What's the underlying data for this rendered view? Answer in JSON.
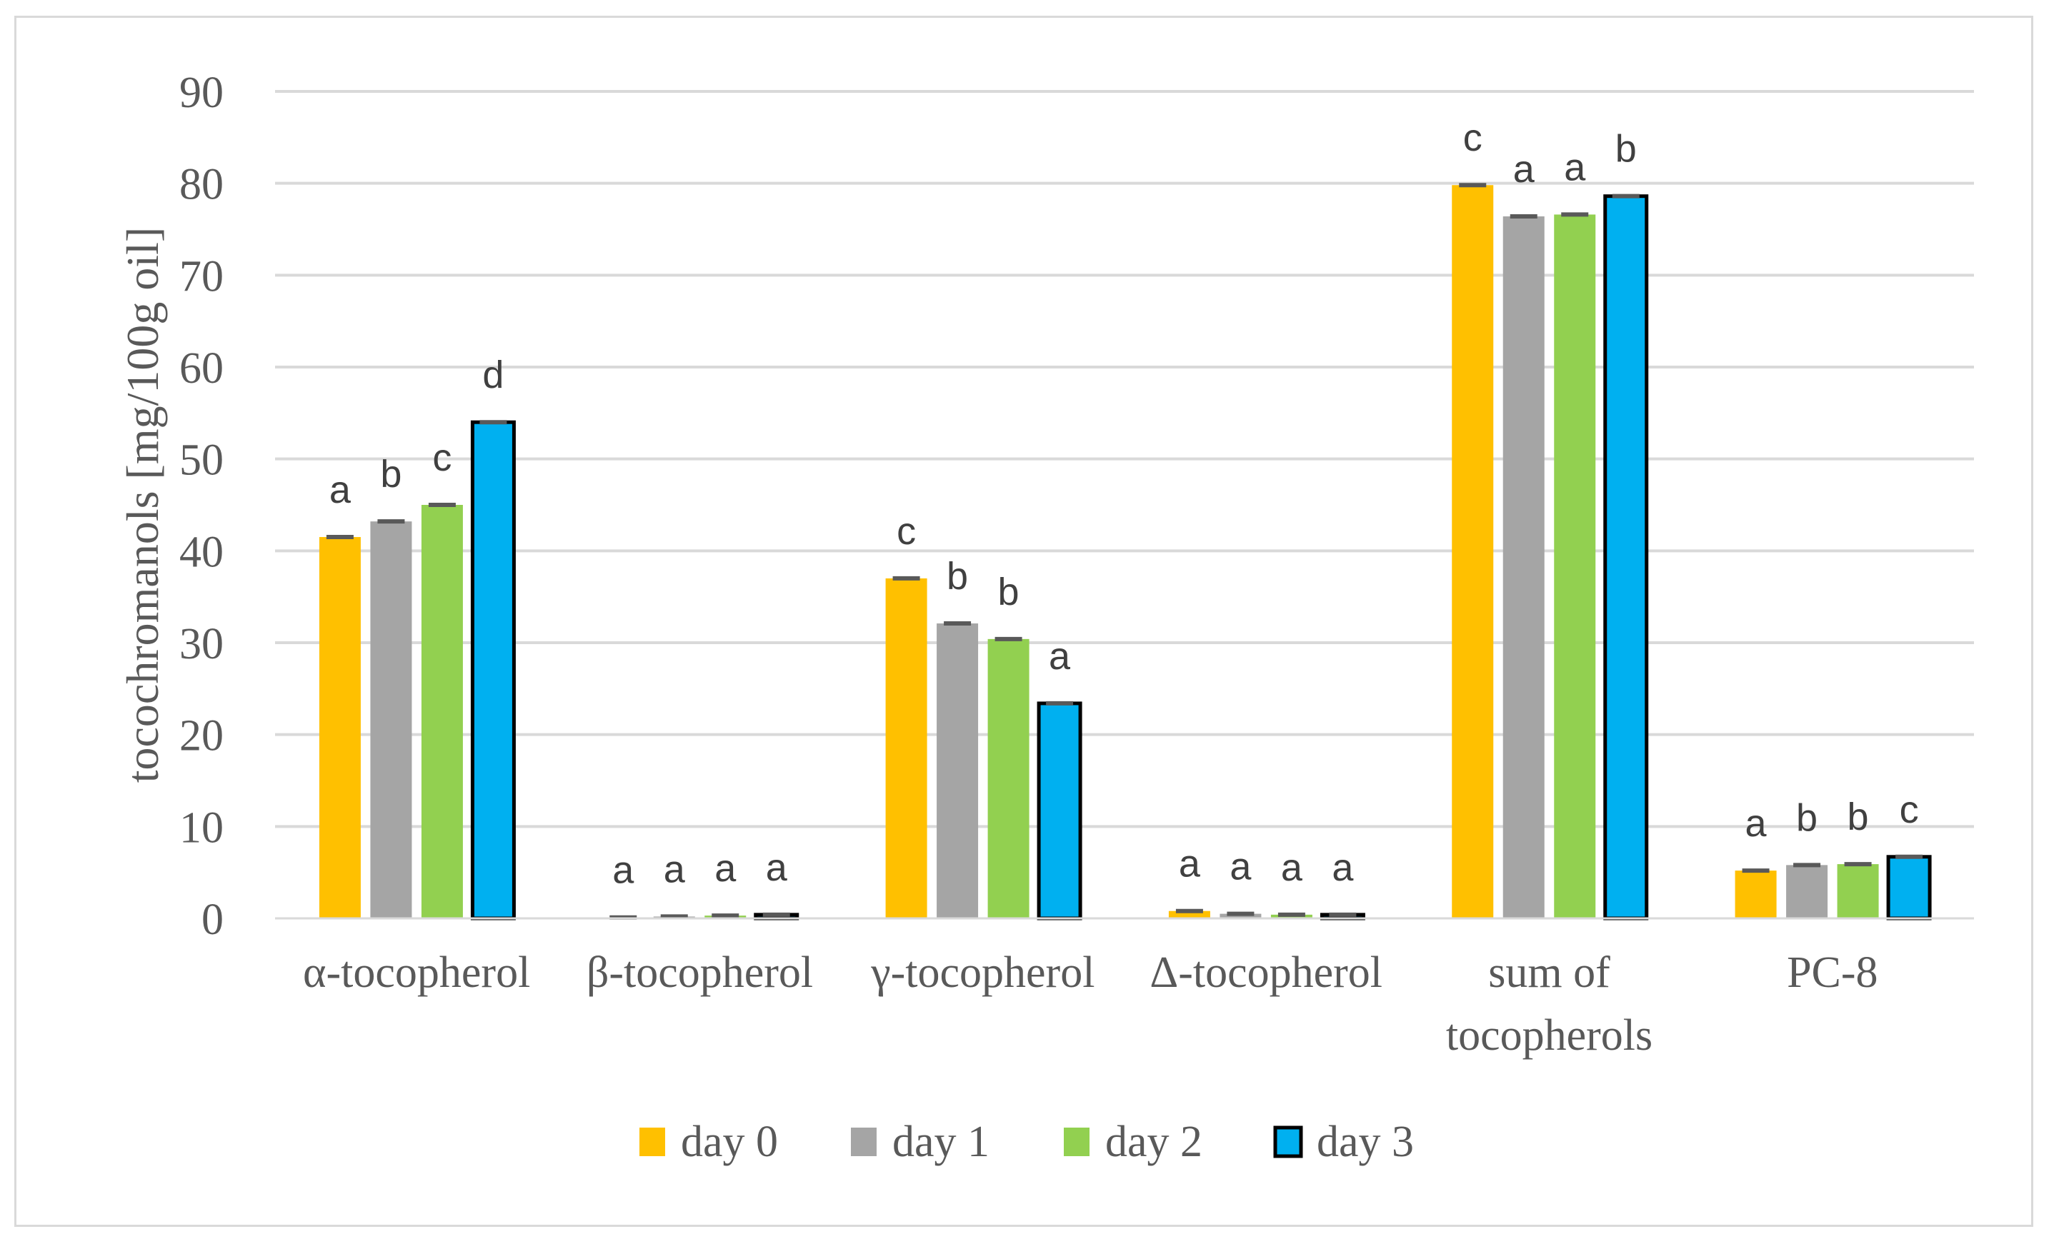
{
  "chart_data": {
    "type": "bar",
    "title": "",
    "xlabel": "",
    "ylabel": "tocochromanols [mg/100g oil]",
    "ylim": [
      0,
      90
    ],
    "yticks": [
      0,
      10,
      20,
      30,
      40,
      50,
      60,
      70,
      80,
      90
    ],
    "grid": true,
    "legend_position": "bottom",
    "categories": [
      [
        "α-tocopherol"
      ],
      [
        "β-tocopherol"
      ],
      [
        "γ-tocopherol"
      ],
      [
        "Δ-tocopherol"
      ],
      [
        "sum of",
        "tocopherols"
      ],
      [
        "PC-8"
      ]
    ],
    "series": [
      {
        "name": "day 0",
        "color": "#ffc000",
        "values": [
          41.5,
          0.1,
          37.0,
          0.8,
          79.8,
          5.2
        ],
        "letters": [
          "a",
          "a",
          "c",
          "a",
          "c",
          "a"
        ]
      },
      {
        "name": "day 1",
        "color": "#a5a5a5",
        "values": [
          43.2,
          0.2,
          32.1,
          0.5,
          76.4,
          5.8
        ],
        "letters": [
          "b",
          "a",
          "b",
          "a",
          "a",
          "b"
        ]
      },
      {
        "name": "day 2",
        "color": "#92d050",
        "values": [
          45.0,
          0.3,
          30.4,
          0.4,
          76.6,
          5.9
        ],
        "letters": [
          "c",
          "a",
          "b",
          "a",
          "a",
          "b"
        ]
      },
      {
        "name": "day 3",
        "color": "#00b0f0",
        "outline": "#000000",
        "values": [
          54.0,
          0.4,
          23.4,
          0.4,
          78.6,
          6.7
        ],
        "letters": [
          "d",
          "a",
          "a",
          "a",
          "b",
          "c"
        ]
      }
    ]
  }
}
